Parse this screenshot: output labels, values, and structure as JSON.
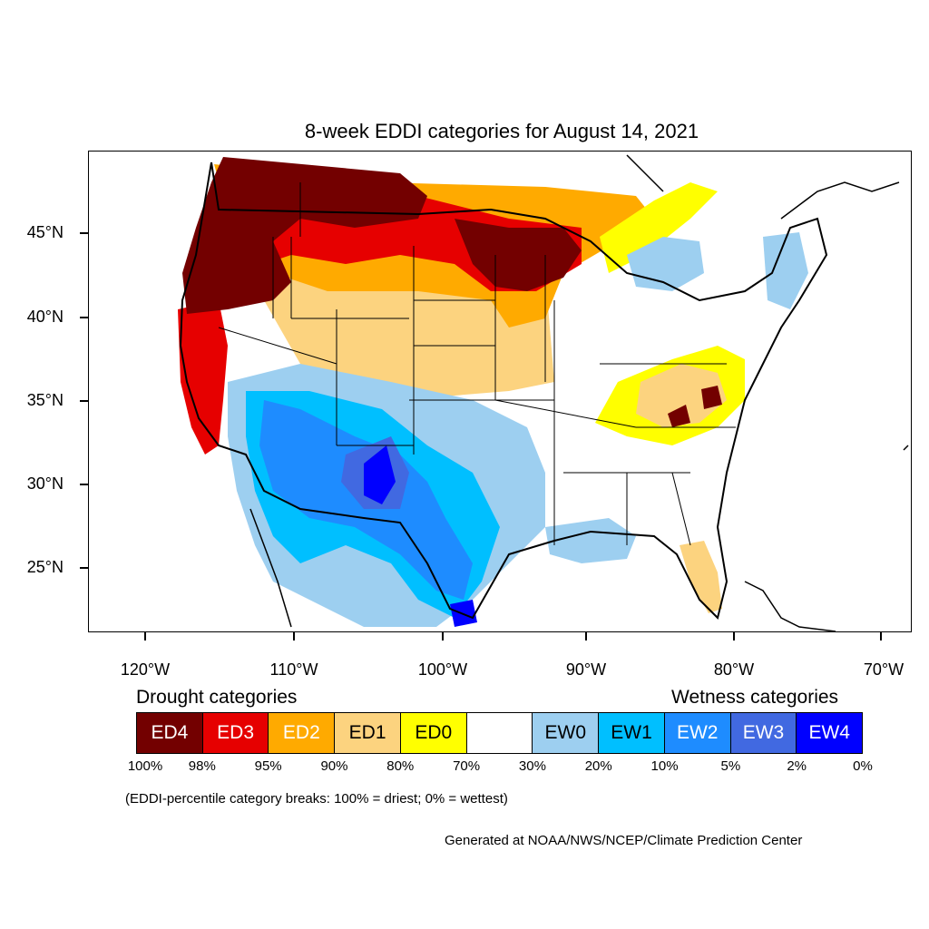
{
  "title": "8-week EDDI categories for August 14, 2021",
  "axes": {
    "lat_labels": [
      "45°N",
      "40°N",
      "35°N",
      "30°N",
      "25°N"
    ],
    "lon_labels": [
      "120°W",
      "110°W",
      "100°W",
      "90°W",
      "80°W",
      "70°W"
    ]
  },
  "legend": {
    "drought_heading": "Drought categories",
    "wetness_heading": "Wetness categories",
    "categories": [
      {
        "label": "ED4",
        "color": "#730000",
        "text_color": "#ffffff"
      },
      {
        "label": "ED3",
        "color": "#e60000",
        "text_color": "#ffffff"
      },
      {
        "label": "ED2",
        "color": "#ffaa00",
        "text_color": "#ffffff"
      },
      {
        "label": "ED1",
        "color": "#fcd37f",
        "text_color": "#000000"
      },
      {
        "label": "ED0",
        "color": "#ffff00",
        "text_color": "#000000"
      },
      {
        "label": "",
        "color": "#ffffff",
        "text_color": "#000000"
      },
      {
        "label": "EW0",
        "color": "#9dcff0",
        "text_color": "#000000"
      },
      {
        "label": "EW1",
        "color": "#00bfff",
        "text_color": "#000000"
      },
      {
        "label": "EW2",
        "color": "#1e8cff",
        "text_color": "#ffffff"
      },
      {
        "label": "EW3",
        "color": "#4169e1",
        "text_color": "#ffffff"
      },
      {
        "label": "EW4",
        "color": "#0000ff",
        "text_color": "#ffffff"
      }
    ],
    "breaks": [
      "100%",
      "98%",
      "95%",
      "90%",
      "80%",
      "70%",
      "30%",
      "20%",
      "10%",
      "5%",
      "2%",
      "0%"
    ]
  },
  "note": "(EDDI-percentile category breaks: 100% = driest; 0% = wettest)",
  "credit": "Generated at NOAA/NWS/NCEP/Climate Prediction Center"
}
